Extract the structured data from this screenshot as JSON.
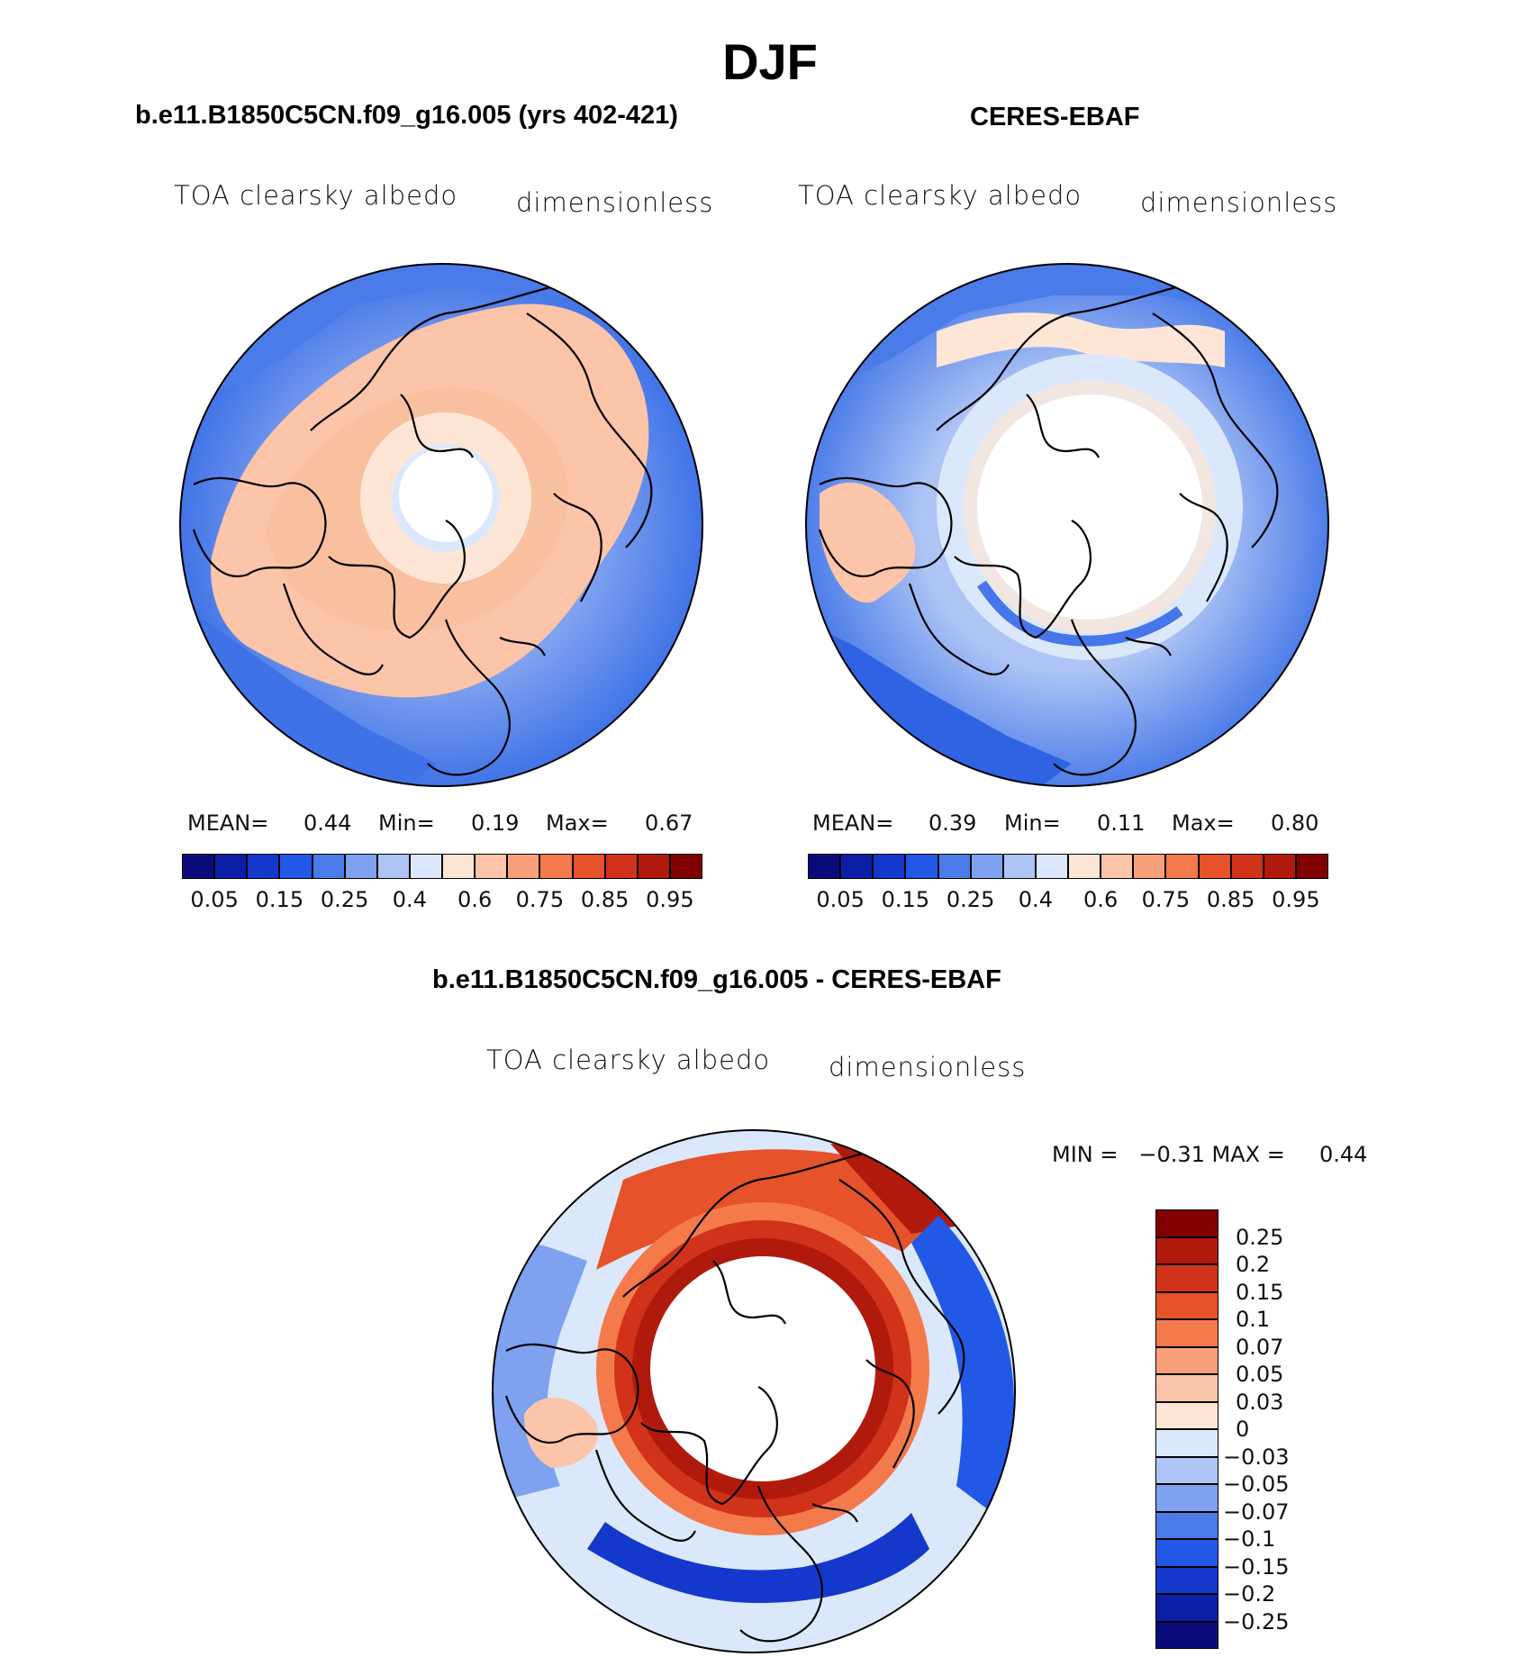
{
  "title": "DJF",
  "panels": [
    {
      "title": "b.e11.B1850C5CN.f09_g16.005 (yrs 402-421)",
      "variable": "TOA clearsky albedo",
      "units": "dimensionless",
      "stats": {
        "mean_label": "MEAN=",
        "mean": "0.44",
        "min_label": "Min=",
        "min": "0.19",
        "max_label": "Max=",
        "max": "0.67"
      }
    },
    {
      "title": "CERES-EBAF",
      "variable": "TOA clearsky albedo",
      "units": "dimensionless",
      "stats": {
        "mean_label": "MEAN=",
        "mean": "0.39",
        "min_label": "Min=",
        "min": "0.11",
        "max_label": "Max=",
        "max": "0.80"
      }
    }
  ],
  "diff_panel": {
    "title": "b.e11.B1850C5CN.f09_g16.005 - CERES-EBAF",
    "variable": "TOA clearsky albedo",
    "units": "dimensionless",
    "minmax_text": "MIN =   −0.31 MAX =     0.44"
  },
  "colorbar_abs": {
    "colors": [
      "#0a0a7a",
      "#0b1fa6",
      "#1438cc",
      "#2258e6",
      "#4a7be8",
      "#7ea1f0",
      "#adc4f5",
      "#dbe8fb",
      "#fde6d6",
      "#fcc4a8",
      "#f9a07a",
      "#f47a4c",
      "#e6522a",
      "#d0321a",
      "#b01a0c",
      "#800000"
    ],
    "tick_labels": [
      "0.05",
      "0.15",
      "0.25",
      "0.4",
      "0.6",
      "0.75",
      "0.85",
      "0.95"
    ]
  },
  "colorbar_diff": {
    "colors": [
      "#800000",
      "#b01a0c",
      "#d0321a",
      "#e6522a",
      "#f47a4c",
      "#f9a07a",
      "#fcc4a8",
      "#fde6d6",
      "#dbe8fb",
      "#adc4f5",
      "#7ea1f0",
      "#4a7be8",
      "#2258e6",
      "#1438cc",
      "#0b1fa6",
      "#0a0a7a"
    ],
    "tick_labels": [
      "0.25",
      "0.2",
      "0.15",
      "0.1",
      "0.07",
      "0.05",
      "0.03",
      "0",
      "−0.03",
      "−0.05",
      "−0.07",
      "−0.1",
      "−0.15",
      "−0.2",
      "−0.25"
    ]
  },
  "chart_data": [
    {
      "type": "heatmap",
      "projection": "polar-stereographic",
      "hemisphere": "north",
      "title": "b.e11.B1850C5CN.f09_g16.005 (yrs 402-421)",
      "field": "TOA clearsky albedo",
      "units": "dimensionless",
      "mean": 0.44,
      "min": 0.19,
      "max": 0.67,
      "levels": [
        0.05,
        0.1,
        0.15,
        0.2,
        0.25,
        0.3,
        0.35,
        0.4,
        0.5,
        0.6,
        0.7,
        0.75,
        0.8,
        0.85,
        0.9,
        0.95
      ]
    },
    {
      "type": "heatmap",
      "projection": "polar-stereographic",
      "hemisphere": "north",
      "title": "CERES-EBAF",
      "field": "TOA clearsky albedo",
      "units": "dimensionless",
      "mean": 0.39,
      "min": 0.11,
      "max": 0.8,
      "levels": [
        0.05,
        0.1,
        0.15,
        0.2,
        0.25,
        0.3,
        0.35,
        0.4,
        0.5,
        0.6,
        0.7,
        0.75,
        0.8,
        0.85,
        0.9,
        0.95
      ]
    },
    {
      "type": "heatmap",
      "projection": "polar-stereographic",
      "hemisphere": "north",
      "title": "b.e11.B1850C5CN.f09_g16.005 - CERES-EBAF",
      "field": "TOA clearsky albedo",
      "units": "dimensionless",
      "min": -0.31,
      "max": 0.44,
      "levels": [
        -0.25,
        -0.2,
        -0.15,
        -0.1,
        -0.07,
        -0.05,
        -0.03,
        0,
        0.03,
        0.05,
        0.07,
        0.1,
        0.15,
        0.2,
        0.25
      ]
    }
  ]
}
